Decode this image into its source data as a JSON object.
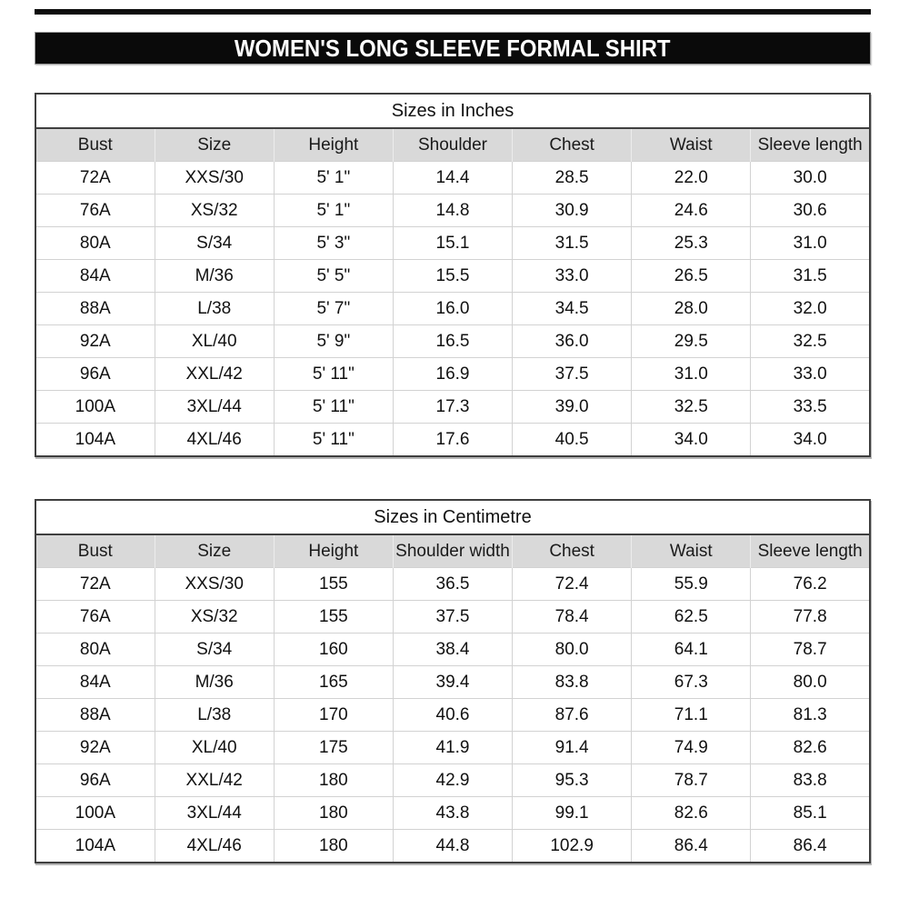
{
  "page": {
    "title": "WOMEN'S LONG SLEEVE FORMAL SHIRT"
  },
  "colors": {
    "banner_bg": "#0a0a0a",
    "banner_text": "#ffffff",
    "header_row_bg": "#d9d9d9",
    "grid_line": "#d2d2d2",
    "outer_border": "#3f3f3f",
    "text": "#111111"
  },
  "tables": [
    {
      "caption": "Sizes in Inches",
      "headers": [
        "Bust",
        "Size",
        "Height",
        "Shoulder",
        "Chest",
        "Waist",
        "Sleeve length"
      ],
      "rows": [
        [
          "72A",
          "XXS/30",
          "5' 1\"",
          "14.4",
          "28.5",
          "22.0",
          "30.0"
        ],
        [
          "76A",
          "XS/32",
          "5' 1\"",
          "14.8",
          "30.9",
          "24.6",
          "30.6"
        ],
        [
          "80A",
          "S/34",
          "5' 3\"",
          "15.1",
          "31.5",
          "25.3",
          "31.0"
        ],
        [
          "84A",
          "M/36",
          "5' 5\"",
          "15.5",
          "33.0",
          "26.5",
          "31.5"
        ],
        [
          "88A",
          "L/38",
          "5' 7\"",
          "16.0",
          "34.5",
          "28.0",
          "32.0"
        ],
        [
          "92A",
          "XL/40",
          "5' 9\"",
          "16.5",
          "36.0",
          "29.5",
          "32.5"
        ],
        [
          "96A",
          "XXL/42",
          "5' 11\"",
          "16.9",
          "37.5",
          "31.0",
          "33.0"
        ],
        [
          "100A",
          "3XL/44",
          "5' 11\"",
          "17.3",
          "39.0",
          "32.5",
          "33.5"
        ],
        [
          "104A",
          "4XL/46",
          "5' 11\"",
          "17.6",
          "40.5",
          "34.0",
          "34.0"
        ]
      ]
    },
    {
      "caption": "Sizes in Centimetre",
      "headers": [
        "Bust",
        "Size",
        "Height",
        "Shoulder width",
        "Chest",
        "Waist",
        "Sleeve length"
      ],
      "rows": [
        [
          "72A",
          "XXS/30",
          "155",
          "36.5",
          "72.4",
          "55.9",
          "76.2"
        ],
        [
          "76A",
          "XS/32",
          "155",
          "37.5",
          "78.4",
          "62.5",
          "77.8"
        ],
        [
          "80A",
          "S/34",
          "160",
          "38.4",
          "80.0",
          "64.1",
          "78.7"
        ],
        [
          "84A",
          "M/36",
          "165",
          "39.4",
          "83.8",
          "67.3",
          "80.0"
        ],
        [
          "88A",
          "L/38",
          "170",
          "40.6",
          "87.6",
          "71.1",
          "81.3"
        ],
        [
          "92A",
          "XL/40",
          "175",
          "41.9",
          "91.4",
          "74.9",
          "82.6"
        ],
        [
          "96A",
          "XXL/42",
          "180",
          "42.9",
          "95.3",
          "78.7",
          "83.8"
        ],
        [
          "100A",
          "3XL/44",
          "180",
          "43.8",
          "99.1",
          "82.6",
          "85.1"
        ],
        [
          "104A",
          "4XL/46",
          "180",
          "44.8",
          "102.9",
          "86.4",
          "86.4"
        ]
      ]
    }
  ]
}
